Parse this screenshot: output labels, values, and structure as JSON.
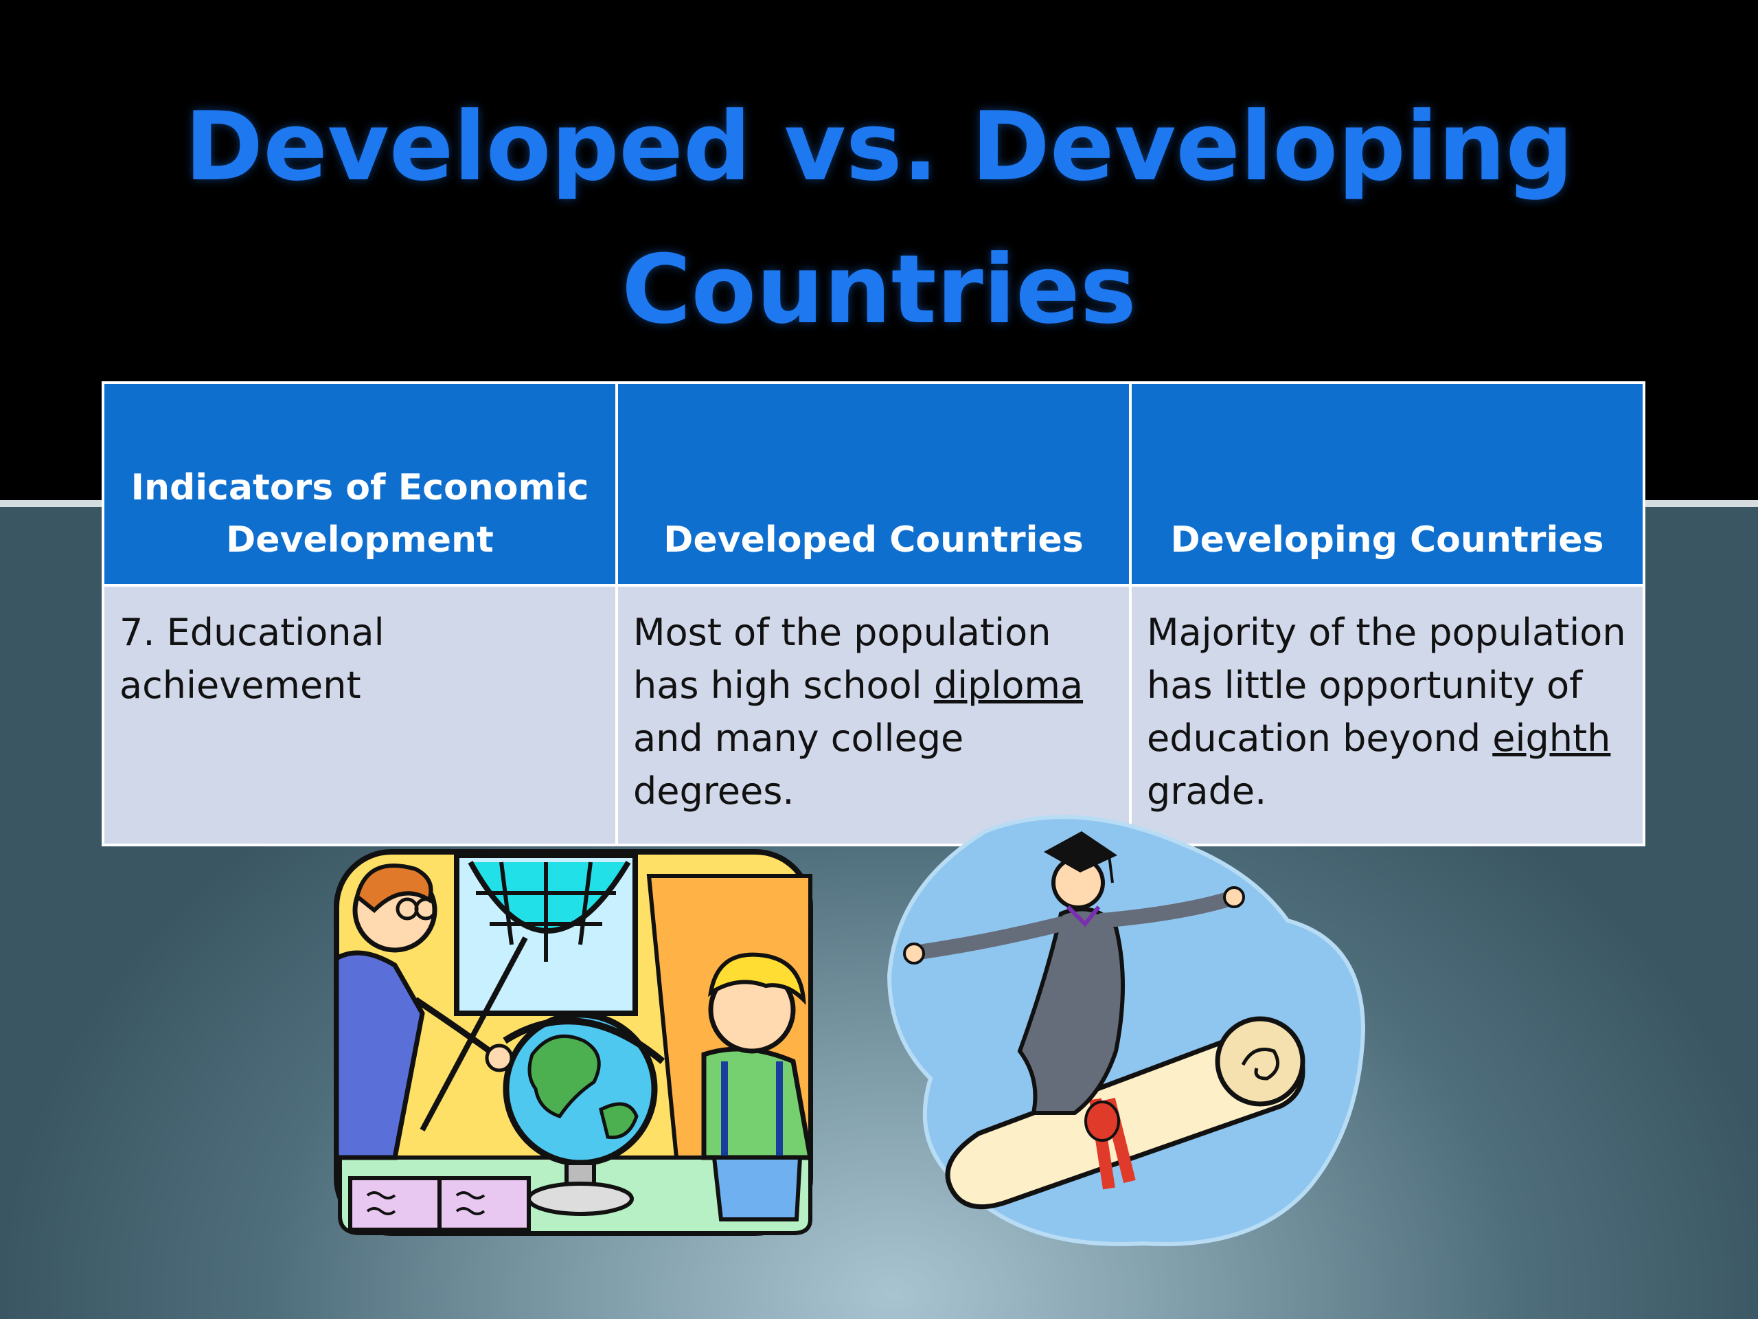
{
  "slide": {
    "title_line1": "Developed vs. Developing",
    "title_line2": "Countries",
    "colors": {
      "title": "#1e78f0",
      "header_bg": "#0f6fcf",
      "cell_bg": "#d0d8ea"
    }
  },
  "table": {
    "headers": [
      "Indicators of Economic Development",
      "Developed Countries",
      "Developing Countries"
    ],
    "row": {
      "indicator": "7. Educational achievement",
      "developed_pre": "Most of the population has high school ",
      "developed_underlined": "diploma",
      "developed_post": " and many college degrees.",
      "developing_pre": "Majority of the population has little opportunity of education beyond ",
      "developing_underlined": "eighth",
      "developing_post": " grade."
    }
  },
  "images": {
    "left": "classroom-globe-clipart",
    "right": "graduate-surfing-diploma-clipart"
  }
}
